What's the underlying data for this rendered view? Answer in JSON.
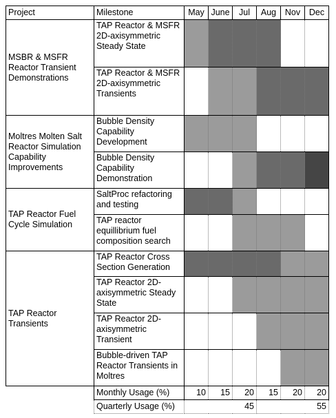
{
  "headers": {
    "project": "Project",
    "milestone": "Milestone",
    "months": [
      "May",
      "June",
      "Jul",
      "Aug",
      "Nov",
      "Dec"
    ]
  },
  "colors": {
    "none": "#ffffff",
    "light": "#9b9b9b",
    "medium": "#6a6a6a",
    "dark": "#454545"
  },
  "projects": [
    {
      "name": "MSBR & MSFR Reactor Transient Demonstrations",
      "milestones": [
        {
          "label": "TAP Reactor & MSFR 2D-axisymmetric Steady State",
          "usage": [
            1,
            2,
            2,
            2,
            0,
            0
          ]
        },
        {
          "label": "TAP Reactor & MSFR 2D-axisymmetric Transients",
          "usage": [
            0,
            1,
            1,
            2,
            2,
            2
          ]
        }
      ]
    },
    {
      "name": "Moltres Molten Salt Reactor Simulation Capability Improvements",
      "milestones": [
        {
          "label": "Bubble Density Capability Development",
          "usage": [
            1,
            1,
            1,
            0,
            0,
            0
          ]
        },
        {
          "label": "Bubble Density Capability Demonstration",
          "usage": [
            0,
            0,
            1,
            2,
            2,
            3
          ]
        }
      ]
    },
    {
      "name": "TAP Reactor Fuel Cycle Simulation",
      "milestones": [
        {
          "label": "SaltProc refactoring and testing",
          "usage": [
            2,
            2,
            1,
            0,
            0,
            0
          ]
        },
        {
          "label": "TAP reactor equillibrium fuel composition search",
          "usage": [
            0,
            0,
            1,
            1,
            1,
            0
          ]
        }
      ]
    },
    {
      "name": "TAP Reactor Transients",
      "milestones": [
        {
          "label": "TAP Reactor Cross Section Generation",
          "usage": [
            2,
            2,
            2,
            2,
            1,
            1
          ]
        },
        {
          "label": "TAP Reactor 2D-axisymmetric Steady State",
          "usage": [
            0,
            0,
            1,
            1,
            1,
            1
          ]
        },
        {
          "label": "TAP Reactor 2D-axisymmetric Transient",
          "usage": [
            0,
            0,
            0,
            1,
            1,
            1
          ]
        },
        {
          "label": "Bubble-driven TAP Reactor Transients in Moltres",
          "usage": [
            0,
            0,
            0,
            0,
            1,
            1
          ]
        }
      ]
    }
  ],
  "monthly_usage": {
    "label": "Monthly Usage (%)",
    "values": [
      "10",
      "15",
      "20",
      "15",
      "20",
      "20"
    ]
  },
  "quarterly_usage": {
    "label": "Quarterly Usage (%)",
    "values": [
      "45",
      "55"
    ]
  }
}
